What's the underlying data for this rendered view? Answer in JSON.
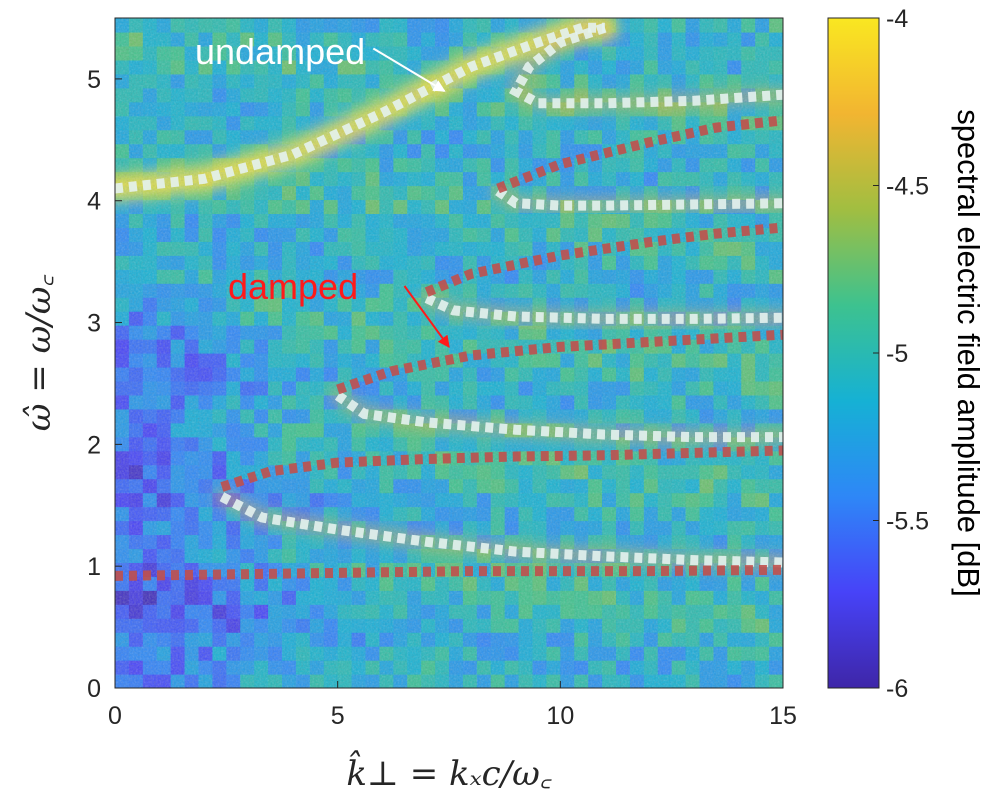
{
  "chart_data": {
    "type": "heatmap",
    "title": "",
    "xlabel": "k̂⊥ = kₓc/ω꜀",
    "ylabel": "ω̂ = ω/ω꜀",
    "xlim": [
      0,
      15
    ],
    "ylim": [
      0,
      5.5
    ],
    "xticks": [
      "0",
      "5",
      "10",
      "15"
    ],
    "yticks": [
      "0",
      "1",
      "2",
      "3",
      "4",
      "5"
    ],
    "colorbar": {
      "label": "spectral electric field amplitude [dB]",
      "range": [
        -6,
        -4
      ],
      "ticks": [
        "-4",
        "-4.5",
        "-5",
        "-5.5",
        "-6"
      ],
      "colormap": [
        "#3e26a8",
        "#4743f8",
        "#2e87f7",
        "#16b1d4",
        "#3dc28f",
        "#a1be41",
        "#f2b531",
        "#f9e721"
      ]
    },
    "background_hint": "noisy spectral amplitude, mostly -5.4 to -4.8 dB; bright ridges along undamped branches",
    "series": [
      {
        "name": "undamped",
        "color": "#e4f2ee",
        "style": "dotted",
        "branches": [
          {
            "x": [
              0,
              2,
              4,
              6,
              8,
              9.5,
              10.5,
              11
            ],
            "y": [
              4.1,
              4.18,
              4.38,
              4.72,
              5.1,
              5.3,
              5.42,
              5.42
            ]
          },
          {
            "x": [
              11,
              10,
              9.3,
              9.0,
              9.5,
              11,
              13,
              15
            ],
            "y": [
              5.42,
              5.3,
              5.1,
              4.9,
              4.8,
              4.8,
              4.82,
              4.87
            ]
          },
          {
            "x": [
              8.6,
              9.0,
              10,
              11,
              13,
              15
            ],
            "y": [
              4.08,
              3.98,
              3.96,
              3.96,
              3.97,
              3.98
            ]
          },
          {
            "x": [
              7.0,
              7.6,
              9,
              11,
              13,
              15
            ],
            "y": [
              3.2,
              3.1,
              3.05,
              3.03,
              3.03,
              3.04
            ]
          },
          {
            "x": [
              5.0,
              5.6,
              7,
              9,
              11,
              13,
              15
            ],
            "y": [
              2.4,
              2.25,
              2.18,
              2.12,
              2.08,
              2.06,
              2.06
            ]
          },
          {
            "x": [
              2.4,
              3.3,
              5,
              7,
              9,
              11,
              13,
              15
            ],
            "y": [
              1.57,
              1.4,
              1.3,
              1.2,
              1.12,
              1.08,
              1.05,
              1.03
            ]
          }
        ]
      },
      {
        "name": "damped",
        "color": "#c0504d",
        "style": "dotted",
        "branches": [
          {
            "x": [
              8.6,
              10,
              12,
              13.5,
              15
            ],
            "y": [
              4.1,
              4.3,
              4.48,
              4.6,
              4.66
            ]
          },
          {
            "x": [
              7.0,
              8,
              10,
              12,
              13.5,
              15
            ],
            "y": [
              3.25,
              3.4,
              3.55,
              3.66,
              3.73,
              3.78
            ]
          },
          {
            "x": [
              5.0,
              6.2,
              8,
              10,
              12,
              13.5,
              15
            ],
            "y": [
              2.45,
              2.6,
              2.73,
              2.8,
              2.84,
              2.87,
              2.9
            ]
          },
          {
            "x": [
              2.4,
              3.5,
              5,
              7,
              9,
              11,
              13,
              15
            ],
            "y": [
              1.65,
              1.78,
              1.85,
              1.88,
              1.9,
              1.91,
              1.93,
              1.95
            ]
          },
          {
            "x": [
              0,
              2,
              4,
              6,
              8,
              10,
              12,
              15
            ],
            "y": [
              0.92,
              0.93,
              0.94,
              0.95,
              0.96,
              0.96,
              0.96,
              0.97
            ]
          }
        ]
      }
    ],
    "annotations": [
      {
        "text": "undamped",
        "color": "#ffffff",
        "arrow_from": [
          5.8,
          5.25
        ],
        "arrow_to": [
          7.4,
          4.9
        ]
      },
      {
        "text": "damped",
        "color": "#ff1a1a",
        "arrow_from": [
          6.5,
          3.3
        ],
        "arrow_to": [
          7.5,
          2.8
        ]
      }
    ]
  }
}
